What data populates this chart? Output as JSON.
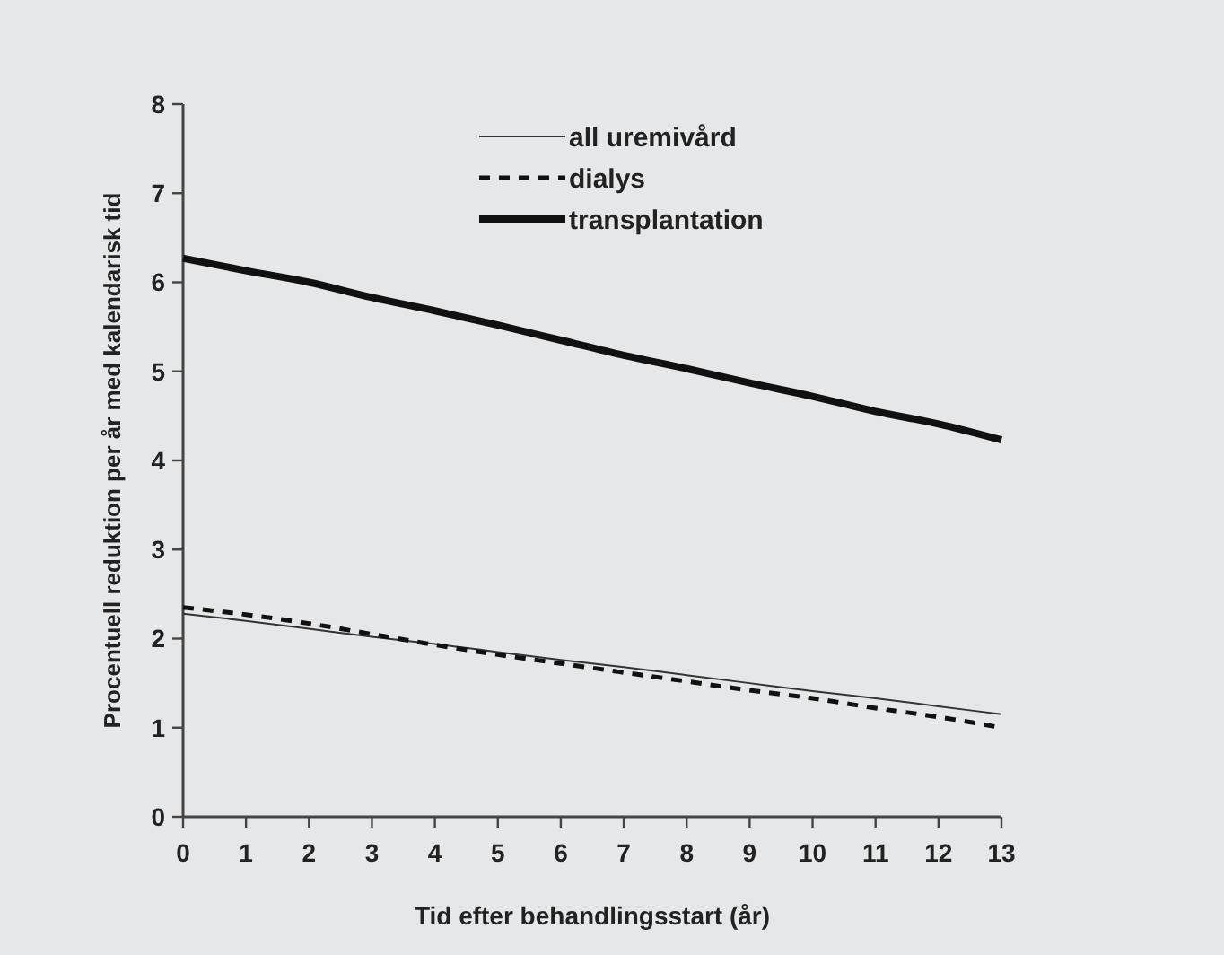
{
  "chart_data": {
    "type": "line",
    "xlabel": "Tid efter behandlingsstart (år)",
    "ylabel": "Procentuell reduktion per år med kalendarisk tid",
    "x": [
      0,
      1,
      2,
      3,
      4,
      5,
      6,
      7,
      8,
      9,
      10,
      11,
      12,
      13
    ],
    "series": [
      {
        "name": "all uremivård",
        "color": "#333333",
        "line_style": "solid",
        "values": [
          2.28,
          2.2,
          2.11,
          2.02,
          1.94,
          1.85,
          1.76,
          1.68,
          1.59,
          1.5,
          1.41,
          1.33,
          1.24,
          1.15
        ]
      },
      {
        "name": "dialys",
        "color": "#111111",
        "line_style": "dashed",
        "values": [
          2.35,
          2.27,
          2.17,
          2.05,
          1.93,
          1.82,
          1.72,
          1.62,
          1.52,
          1.42,
          1.33,
          1.22,
          1.12,
          1.0
        ]
      },
      {
        "name": "transplantation",
        "color": "#111111",
        "line_style": "solid",
        "values": [
          6.27,
          6.13,
          6.0,
          5.83,
          5.68,
          5.52,
          5.35,
          5.18,
          5.03,
          4.87,
          4.72,
          4.55,
          4.41,
          4.23
        ]
      }
    ],
    "xlim": [
      0,
      13
    ],
    "xticks": [
      0,
      1,
      2,
      3,
      4,
      5,
      6,
      7,
      8,
      9,
      10,
      11,
      12,
      13
    ],
    "ylim": [
      0,
      8
    ],
    "yticks": [
      0,
      1,
      2,
      3,
      4,
      5,
      6,
      7,
      8
    ],
    "grid": false,
    "legend": "top"
  }
}
